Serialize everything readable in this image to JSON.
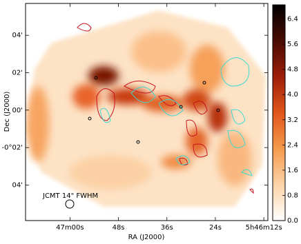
{
  "chart_data": {
    "type": "image",
    "xlabel": "RA (J2000)",
    "ylabel": "Dec (J2000)",
    "xlim": [
      20831,
      20771
    ],
    "xticks": [
      {
        "value": 20820,
        "label": "47m00s"
      },
      {
        "value": 20808,
        "label": "48s"
      },
      {
        "value": 20796,
        "label": "36s"
      },
      {
        "value": 20784,
        "label": "24s"
      },
      {
        "value": 20772,
        "label": "5h46m12s"
      }
    ],
    "ylim": [
      -5.9,
      5.7
    ],
    "yticks": [
      {
        "value": 4,
        "label": "04'"
      },
      {
        "value": 2,
        "label": "02'"
      },
      {
        "value": 0,
        "label": "00'"
      },
      {
        "value": -2,
        "label": "-0°02'"
      },
      {
        "value": -4,
        "label": "04'"
      }
    ],
    "clim": [
      0,
      6.85
    ],
    "cticks": [
      {
        "value": 0,
        "label": "0.0"
      },
      0.8,
      1.6,
      2.4,
      3.2,
      {
        "value": 4,
        "label": "4.0"
      },
      4.8,
      5.6,
      6.4
    ],
    "colormap": [
      "#ffffff",
      "#fcd3a8",
      "#f59a4c",
      "#e0561a",
      "#9e1e08",
      "#4a0c04",
      "#000000"
    ],
    "annotation": "JCMT 14\" FWHM"
  }
}
